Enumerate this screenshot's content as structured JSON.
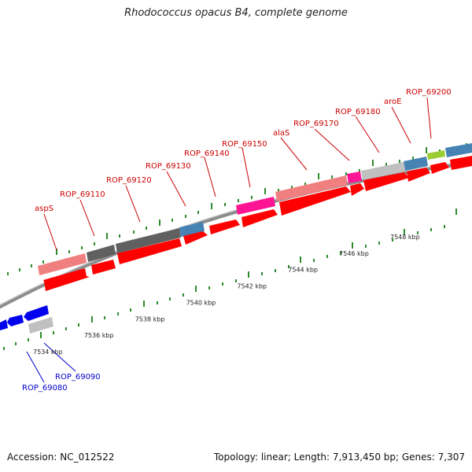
{
  "title": "Rhodococcus opacus B4, complete genome",
  "footer": {
    "accession": "Accession: NC_012522",
    "summary": "Topology: linear; Length: 7,913,450 bp; Genes: 7,307"
  },
  "colors": {
    "cds_red": "#ff0000",
    "cds_blue": "#0000ee",
    "label_red": "#cc0000",
    "label_blue": "#0000cc",
    "pink": "#f08080",
    "dark_gray": "#606060",
    "steel_blue": "#4682b4",
    "magenta": "#ff1493",
    "light_gray": "#c0c0c0",
    "yellow_green": "#9acd32",
    "tick_green": "#006400",
    "backbone": "#8c8c8c"
  },
  "scale_labels": [
    {
      "kbp": 7534,
      "text": "7534 kbp"
    },
    {
      "kbp": 7536,
      "text": "7536 kbp"
    },
    {
      "kbp": 7538,
      "text": "7538 kbp"
    },
    {
      "kbp": 7540,
      "text": "7540 kbp"
    },
    {
      "kbp": 7542,
      "text": "7542 kbp"
    },
    {
      "kbp": 7544,
      "text": "7544 kbp"
    },
    {
      "kbp": 7546,
      "text": "7546 kbp"
    },
    {
      "kbp": 7548,
      "text": "7548 kbp"
    }
  ],
  "gene_labels": [
    {
      "text": "aspS",
      "strand": "+",
      "kbp": 7535.3
    },
    {
      "text": "ROP_69110",
      "strand": "+",
      "kbp": 7536.2
    },
    {
      "text": "ROP_69120",
      "strand": "+",
      "kbp": 7537.9
    },
    {
      "text": "ROP_69130",
      "strand": "+",
      "kbp": 7539.8
    },
    {
      "text": "ROP_69140",
      "strand": "+",
      "kbp": 7541.0
    },
    {
      "text": "ROP_69150",
      "strand": "+",
      "kbp": 7542.4
    },
    {
      "text": "alaS",
      "strand": "+",
      "kbp": 7544.3
    },
    {
      "text": "ROP_69170",
      "strand": "+",
      "kbp": 7546.3
    },
    {
      "text": "ROP_69180",
      "strand": "+",
      "kbp": 7547.3
    },
    {
      "text": "aroE",
      "strand": "+",
      "kbp": 7548.5
    },
    {
      "text": "ROP_69200",
      "strand": "+",
      "kbp": 7549.2
    },
    {
      "text": "ROP_69080",
      "strand": "-",
      "kbp": 7533.3
    },
    {
      "text": "ROP_69090",
      "strand": "-",
      "kbp": 7534.0
    }
  ]
}
